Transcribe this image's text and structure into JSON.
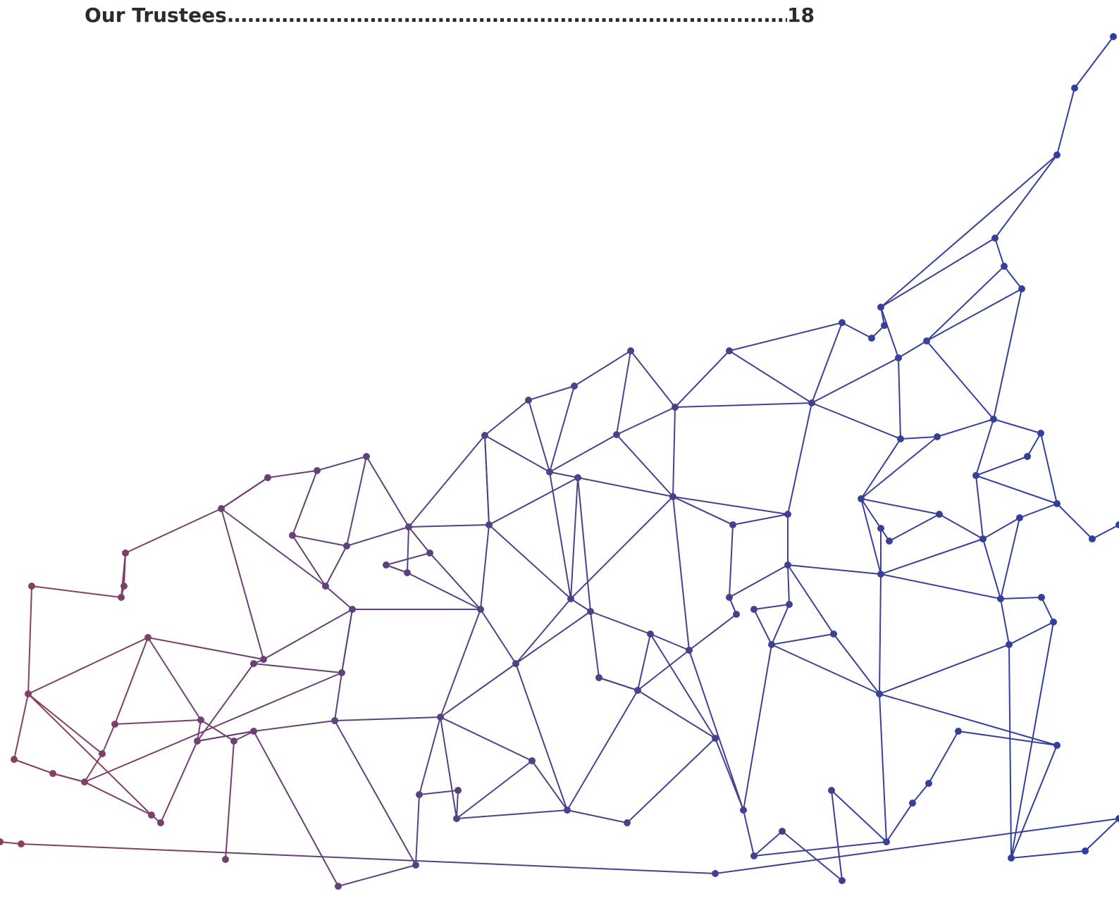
{
  "toc": {
    "entry_title": "Our Trustees",
    "leader": "..........................................................................................................................................................................................",
    "entry_page": "18"
  },
  "decoration": {
    "name": "network-mesh-graphic",
    "gradient_start": "#8a3f5e",
    "gradient_mid": "#4f4287",
    "gradient_end": "#2d3fa0"
  }
}
